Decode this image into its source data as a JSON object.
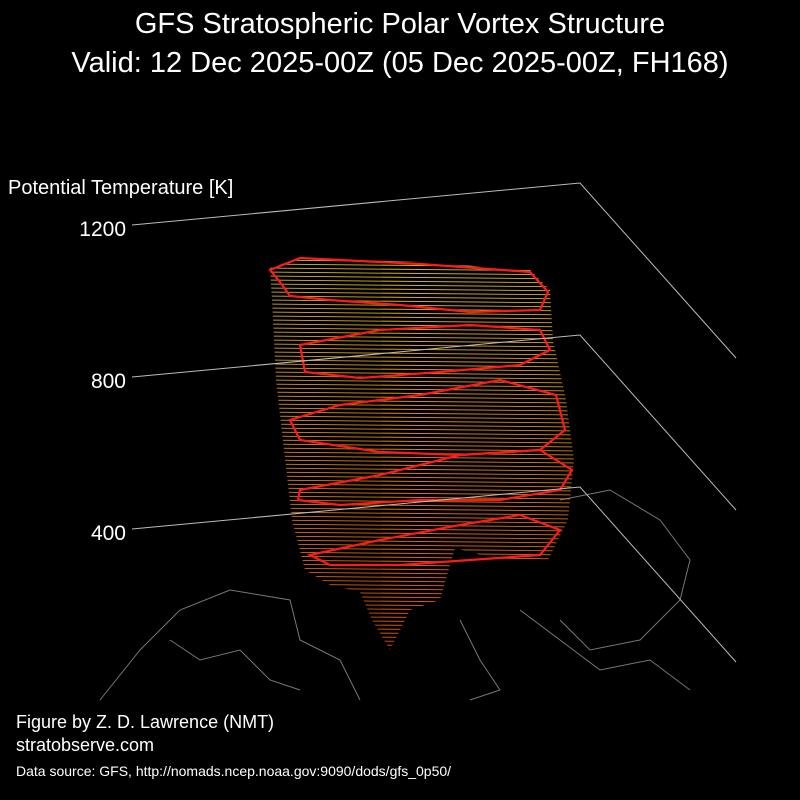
{
  "chart_data": {
    "type": "vortex3d",
    "title": "GFS Stratospheric Polar Vortex Structure",
    "subtitle": "Valid: 12 Dec 2025-00Z  (05 Dec 2025-00Z, FH168)",
    "zlabel": "Potential Temperature [K]",
    "zlim": [
      400,
      1200
    ],
    "zticks": [
      400,
      800,
      1200
    ],
    "credit": "Figure by Z. D. Lawrence (NMT)",
    "website": "stratobserve.com",
    "source": "Data source: GFS, http://nomads.ncep.noaa.gov:9090/dods/gfs_0p50/"
  }
}
